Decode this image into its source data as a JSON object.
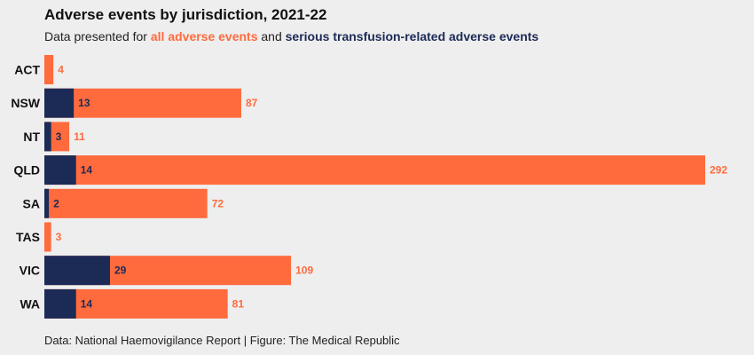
{
  "header": {
    "title": "Adverse events by jurisdiction, 2021-22",
    "subtitle_prefix": "Data presented for",
    "subtitle_all": "all adverse events",
    "subtitle_mid": "and",
    "subtitle_serious": "serious transfusion-related adverse events"
  },
  "footer": {
    "caption": "Data: National Haemovigilance Report | Figure: The Medical Republic"
  },
  "colors": {
    "all": "#ff6b3d",
    "serious": "#1c2a56",
    "background": "#eeeeee"
  },
  "chart_data": {
    "type": "bar",
    "orientation": "horizontal",
    "categories": [
      "ACT",
      "NSW",
      "NT",
      "QLD",
      "SA",
      "TAS",
      "VIC",
      "WA"
    ],
    "series": [
      {
        "name": "all adverse events",
        "values": [
          4,
          87,
          11,
          292,
          72,
          3,
          109,
          81
        ]
      },
      {
        "name": "serious transfusion-related adverse events",
        "values": [
          0,
          13,
          3,
          14,
          2,
          0,
          29,
          14
        ]
      }
    ],
    "xlim": [
      0,
      292
    ],
    "grid": false,
    "legend": "subtitle"
  }
}
